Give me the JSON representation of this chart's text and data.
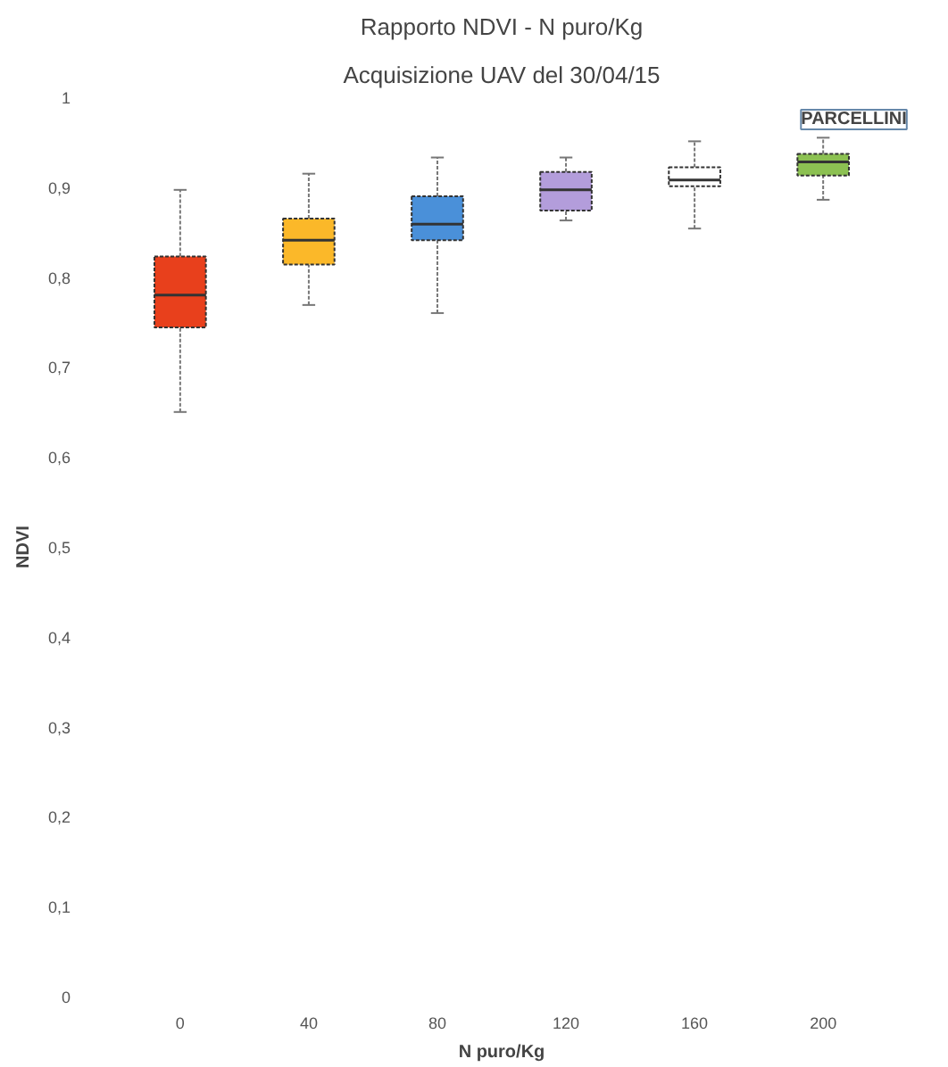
{
  "chart_data": {
    "type": "box",
    "title": "Rapporto NDVI - N puro/Kg",
    "subtitle": "Acquisizione UAV del 30/04/15",
    "xlabel": "N puro/Kg",
    "ylabel": "NDVI",
    "annotations": [
      "PARCELLINI"
    ],
    "categories": [
      "0",
      "40",
      "80",
      "120",
      "160",
      "200"
    ],
    "colors": [
      "#e8401c",
      "#fbb829",
      "#4a90d9",
      "#b39ddb",
      "#ffffff",
      "#8cc152"
    ],
    "boxes": [
      {
        "low": 0.65,
        "q1": 0.744,
        "median": 0.78,
        "q3": 0.823,
        "high": 0.897
      },
      {
        "low": 0.769,
        "q1": 0.814,
        "median": 0.841,
        "q3": 0.865,
        "high": 0.915
      },
      {
        "low": 0.76,
        "q1": 0.841,
        "median": 0.859,
        "q3": 0.89,
        "high": 0.933
      },
      {
        "low": 0.863,
        "q1": 0.874,
        "median": 0.897,
        "q3": 0.917,
        "high": 0.933
      },
      {
        "low": 0.854,
        "q1": 0.901,
        "median": 0.908,
        "q3": 0.922,
        "high": 0.951
      },
      {
        "low": 0.886,
        "q1": 0.913,
        "median": 0.928,
        "q3": 0.937,
        "high": 0.955
      }
    ],
    "ylim": [
      0,
      1
    ],
    "yticks": [
      0,
      {
        "value": 0.1,
        "label": "0,1"
      },
      {
        "value": 0.2,
        "label": "0,2"
      },
      {
        "value": 0.3,
        "label": "0,3"
      },
      {
        "value": 0.4,
        "label": "0,4"
      },
      {
        "value": 0.5,
        "label": "0,5"
      },
      {
        "value": 0.6,
        "label": "0,6"
      },
      {
        "value": 0.7,
        "label": "0,7"
      },
      {
        "value": 0.8,
        "label": "0,8"
      },
      {
        "value": 0.9,
        "label": "0,9"
      },
      1
    ],
    "grid": false
  }
}
